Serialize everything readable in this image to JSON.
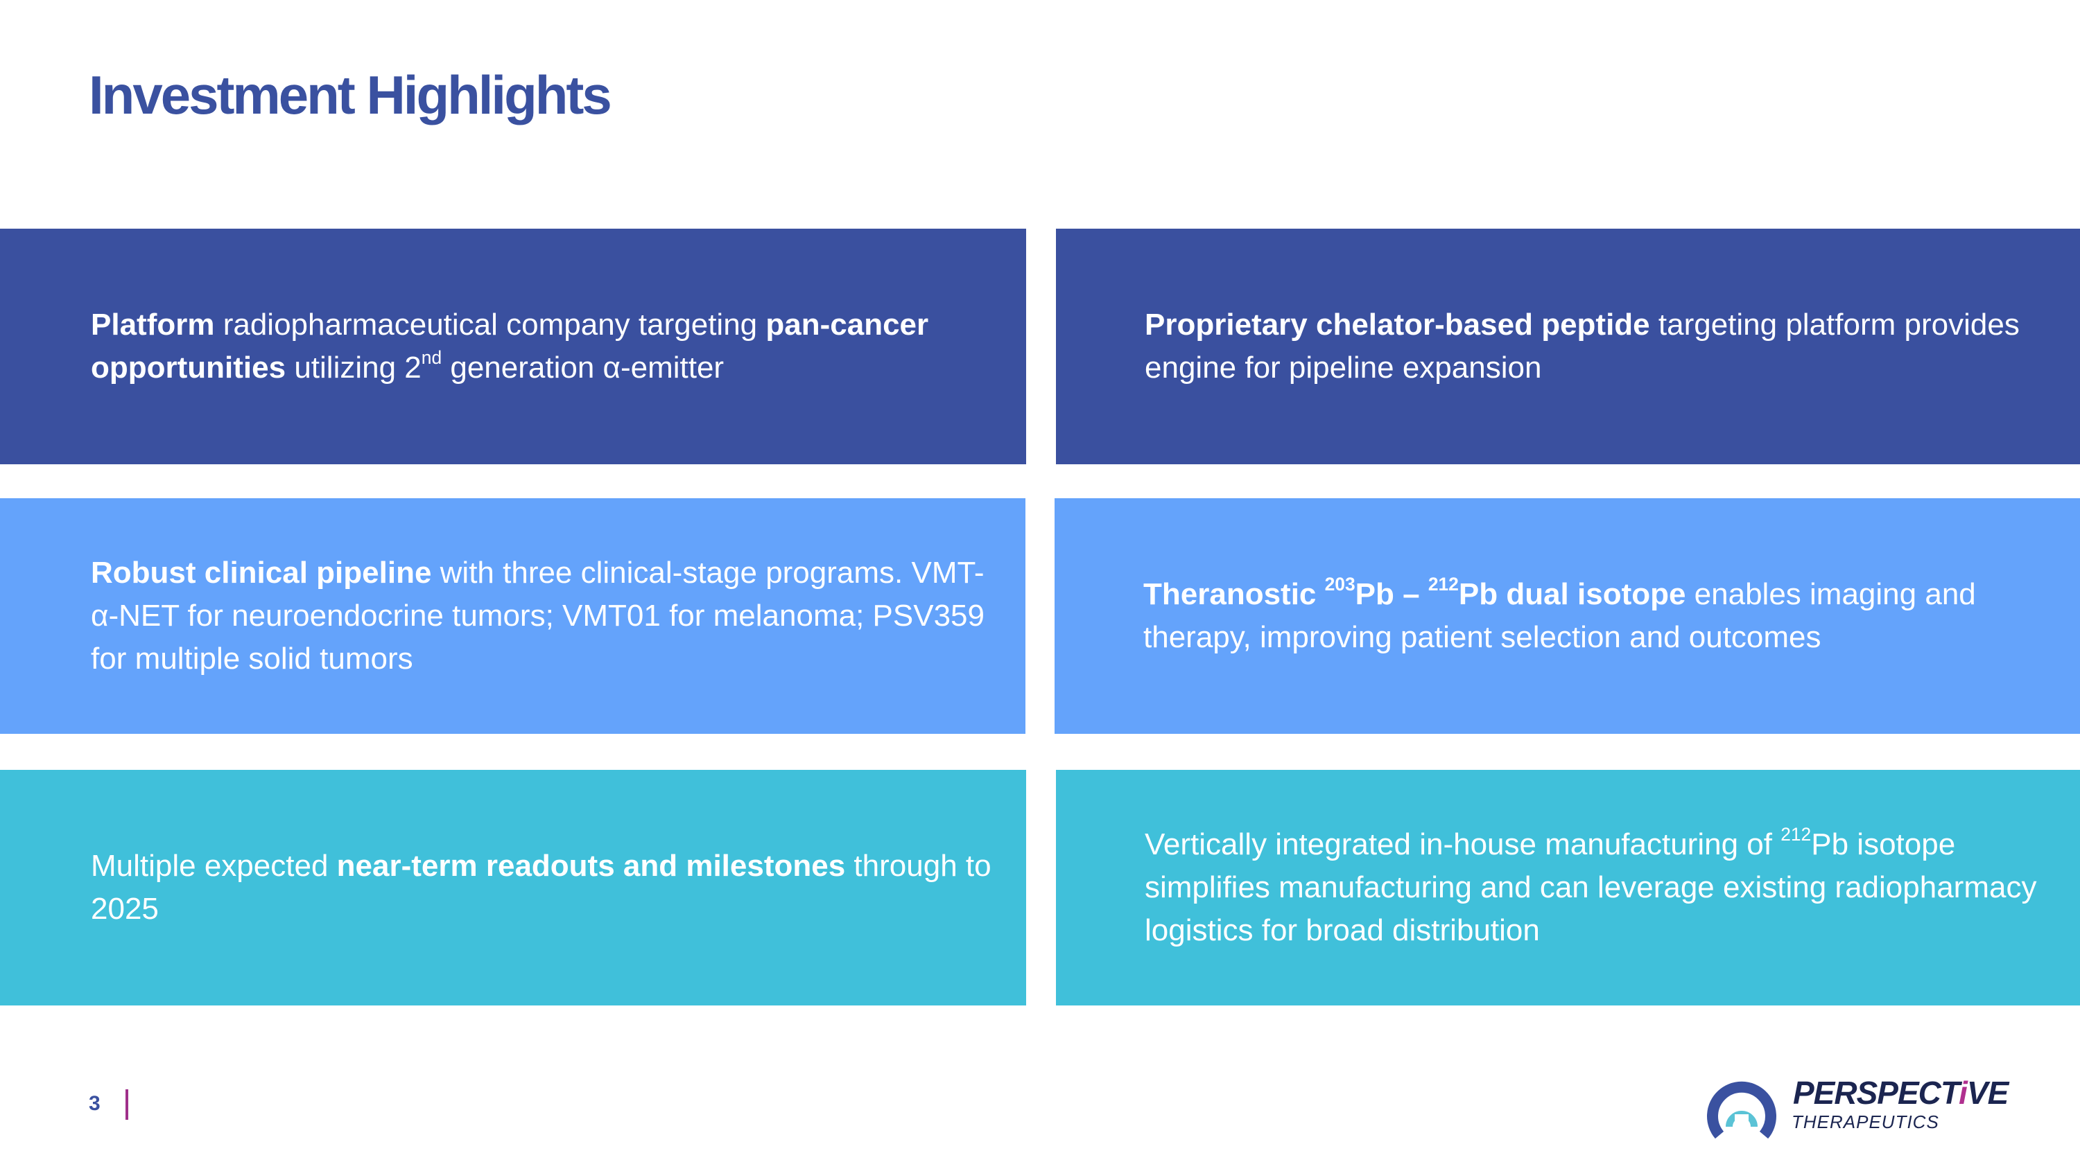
{
  "slide": {
    "title": "Investment Highlights",
    "page_number": "3"
  },
  "boxes": [
    {
      "color": "#3a509f",
      "segments": [
        {
          "t": "Platform",
          "s": "b"
        },
        {
          "t": " radiopharmaceutical company targeting ",
          "s": ""
        },
        {
          "t": "pan-cancer opportunities",
          "s": "b"
        },
        {
          "t": " utilizing 2",
          "s": ""
        },
        {
          "t": "nd",
          "s": "sup"
        },
        {
          "t": " generation α-emitter",
          "s": ""
        }
      ]
    },
    {
      "color": "#3a509f",
      "segments": [
        {
          "t": "Proprietary chelator-based peptide",
          "s": "b"
        },
        {
          "t": " targeting platform provides engine for pipeline expansion",
          "s": ""
        }
      ]
    },
    {
      "color": "#64a3fb",
      "segments": [
        {
          "t": "Robust clinical pipeline",
          "s": "b"
        },
        {
          "t": " with three clinical-stage programs. VMT-α-NET for neuroendocrine tumors; VMT01 for melanoma; PSV359 for multiple solid tumors",
          "s": ""
        }
      ]
    },
    {
      "color": "#64a3fb",
      "segments": [
        {
          "t": "Theranostic ",
          "s": "b"
        },
        {
          "t": "203",
          "s": "bsup"
        },
        {
          "t": "Pb – ",
          "s": "b"
        },
        {
          "t": "212",
          "s": "bsup"
        },
        {
          "t": "Pb dual isotope",
          "s": "b"
        },
        {
          "t": " enables imaging and therapy, improving patient selection and outcomes",
          "s": ""
        }
      ]
    },
    {
      "color": "#40c0da",
      "segments": [
        {
          "t": "Multiple expected ",
          "s": ""
        },
        {
          "t": "near-term readouts and milestones",
          "s": "b"
        },
        {
          "t": " through to 2025",
          "s": ""
        }
      ]
    },
    {
      "color": "#40c0da",
      "segments": [
        {
          "t": "Vertically integrated in-house manufacturing of ",
          "s": ""
        },
        {
          "t": "212",
          "s": "sup"
        },
        {
          "t": "Pb isotope simplifies manufacturing and can leverage existing radiopharmacy logistics for broad distribution",
          "s": ""
        }
      ]
    }
  ],
  "logo": {
    "name_main": "PERSPECT",
    "name_accent": "i",
    "name_end": "VE",
    "subtitle": "THERAPEUTICS",
    "colors": {
      "navy": "#1b2550",
      "ring": "#3a51a0",
      "teal": "#5bc3d6",
      "accent": "#b0308f"
    }
  },
  "colors": {
    "title": "#3a51a0",
    "dark_blue": "#3a509f",
    "mid_blue": "#64a3fb",
    "teal": "#40c0da",
    "divider": "#a0308a"
  }
}
